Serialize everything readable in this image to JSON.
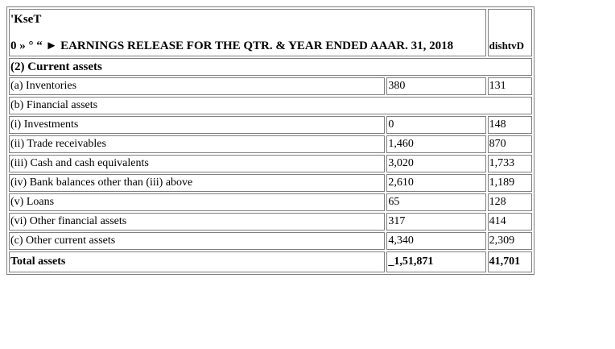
{
  "header": {
    "title_line1": "'KseT",
    "title_line2": "0 » ° “ ► EARNINGS RELEASE FOR THE QTR. & YEAR ENDED AAAR. 31, 2018",
    "corner_label": "dishtvD"
  },
  "section": {
    "label": "(2) Current assets"
  },
  "rows": [
    {
      "label": "(a) Inventories",
      "value_a": "380",
      "value_b": "131"
    },
    {
      "label": "(b) Financial assets"
    },
    {
      "label": "(i) Investments",
      "value_a": "0",
      "value_b": "148"
    },
    {
      "label": "(ii) Trade receivables",
      "value_a": "1,460",
      "value_b": "870"
    },
    {
      "label": "(iii) Cash and cash equivalents",
      "value_a": "3,020",
      "value_b": "1,733"
    },
    {
      "label": "(iv) Bank balances other than (iii) above",
      "value_a": "2,610",
      "value_b": "1,189"
    },
    {
      "label": "(v) Loans",
      "value_a": "65",
      "value_b": "128"
    },
    {
      "label": "(vi) Other financial assets",
      "value_a": "317",
      "value_b": "414"
    },
    {
      "label": "(c) Other current assets",
      "value_a": "4,340",
      "value_b": "2,309"
    }
  ],
  "total": {
    "label": "Total assets",
    "value_a": "_1,51,871",
    "value_b": "41,701"
  }
}
